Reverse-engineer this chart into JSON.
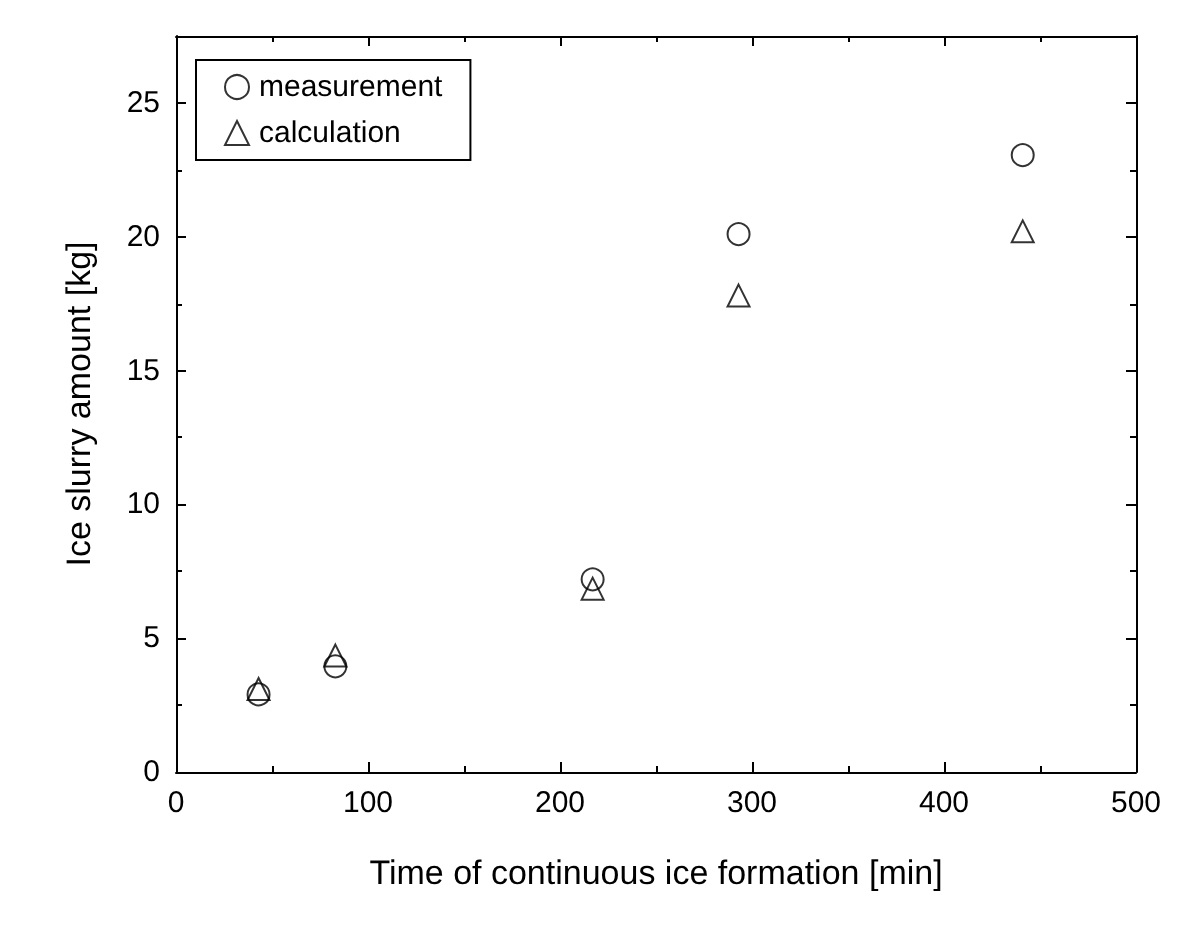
{
  "chart_data": {
    "type": "scatter",
    "xlabel": "Time of continuous ice formation [min]",
    "ylabel": "Ice slurry amount [kg]",
    "x": [
      43,
      83,
      217,
      293,
      441
    ],
    "series": [
      {
        "name": "measurement",
        "color": "#000000",
        "marker": "circle",
        "values": [
          2.9,
          3.95,
          7.2,
          20.1,
          23.05
        ]
      },
      {
        "name": "calculation",
        "color": "#000000",
        "marker": "triangle",
        "values": [
          3.1,
          4.35,
          6.85,
          17.8,
          20.2
        ]
      }
    ],
    "xlim": [
      0,
      500
    ],
    "xticks": [
      0,
      100,
      200,
      300,
      400,
      500
    ],
    "ylim": [
      0,
      27.5
    ],
    "yticks": [
      0,
      5,
      10,
      15,
      20,
      25
    ],
    "grid": false,
    "legend": "top left"
  }
}
